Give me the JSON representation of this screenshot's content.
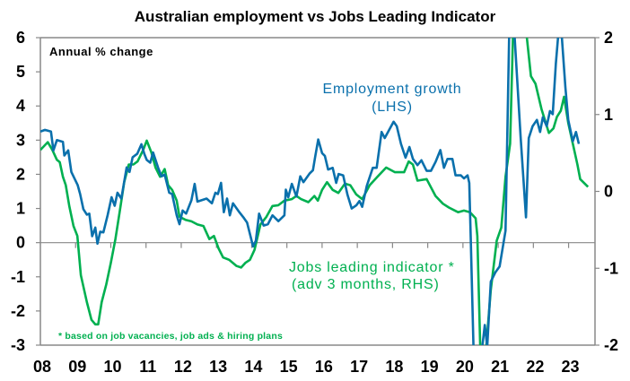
{
  "chart_data": {
    "type": "line",
    "title": "Australian employment vs Jobs Leading Indicator",
    "units_note": "Annual % change",
    "footnote": "* based on job vacancies, job ads & hiring plans",
    "x_tick_labels": [
      "08",
      "09",
      "10",
      "11",
      "12",
      "13",
      "14",
      "15",
      "16",
      "17",
      "18",
      "19",
      "20",
      "21",
      "22",
      "23"
    ],
    "x_ticks_years": [
      2008,
      2009,
      2010,
      2011,
      2012,
      2013,
      2014,
      2015,
      2016,
      2017,
      2018,
      2019,
      2020,
      2021,
      2022,
      2023
    ],
    "xlim": [
      2008,
      2023.75
    ],
    "ylim_left": [
      -3,
      6
    ],
    "ylim_right": [
      -2,
      2
    ],
    "y_left_ticks": [
      6,
      5,
      4,
      3,
      2,
      1,
      0,
      -1,
      -2,
      -3
    ],
    "y_right_ticks": [
      2,
      1,
      0,
      -1,
      -2
    ],
    "colors": {
      "employment": "#0A70AC",
      "jli": "#00B050",
      "axis": "#888888"
    },
    "series": [
      {
        "name": "Employment growth",
        "label_lines": [
          "Employment growth",
          "(LHS)"
        ],
        "axis": "left",
        "points": [
          [
            2008.0,
            3.25
          ],
          [
            2008.13,
            3.3
          ],
          [
            2008.3,
            3.25
          ],
          [
            2008.37,
            2.7
          ],
          [
            2008.47,
            3.0
          ],
          [
            2008.64,
            2.95
          ],
          [
            2008.68,
            2.55
          ],
          [
            2008.79,
            2.7
          ],
          [
            2008.88,
            2.07
          ],
          [
            2009.06,
            1.68
          ],
          [
            2009.13,
            1.42
          ],
          [
            2009.22,
            0.98
          ],
          [
            2009.32,
            0.82
          ],
          [
            2009.39,
            0.85
          ],
          [
            2009.47,
            0.19
          ],
          [
            2009.56,
            0.44
          ],
          [
            2009.62,
            -0.03
          ],
          [
            2009.7,
            0.32
          ],
          [
            2009.79,
            0.3
          ],
          [
            2009.91,
            0.8
          ],
          [
            2010.02,
            1.33
          ],
          [
            2010.11,
            1.08
          ],
          [
            2010.19,
            1.46
          ],
          [
            2010.3,
            1.29
          ],
          [
            2010.45,
            2.2
          ],
          [
            2010.53,
            2.07
          ],
          [
            2010.62,
            2.5
          ],
          [
            2010.75,
            2.6
          ],
          [
            2010.87,
            2.88
          ],
          [
            2010.95,
            2.6
          ],
          [
            2011.02,
            2.42
          ],
          [
            2011.12,
            2.34
          ],
          [
            2011.2,
            2.64
          ],
          [
            2011.34,
            2.2
          ],
          [
            2011.44,
            1.94
          ],
          [
            2011.53,
            1.99
          ],
          [
            2011.66,
            1.46
          ],
          [
            2011.74,
            1.42
          ],
          [
            2011.87,
            0.8
          ],
          [
            2011.95,
            0.54
          ],
          [
            2012.04,
            0.94
          ],
          [
            2012.14,
            0.85
          ],
          [
            2012.29,
            1.24
          ],
          [
            2012.38,
            1.72
          ],
          [
            2012.46,
            1.2
          ],
          [
            2012.72,
            1.29
          ],
          [
            2012.87,
            1.15
          ],
          [
            2012.97,
            1.46
          ],
          [
            2013.04,
            1.42
          ],
          [
            2013.13,
            1.75
          ],
          [
            2013.21,
            0.89
          ],
          [
            2013.3,
            1.29
          ],
          [
            2013.38,
            0.8
          ],
          [
            2013.47,
            1.15
          ],
          [
            2013.65,
            0.89
          ],
          [
            2013.78,
            0.72
          ],
          [
            2013.87,
            0.59
          ],
          [
            2014.04,
            -0.11
          ],
          [
            2014.12,
            0.06
          ],
          [
            2014.21,
            0.85
          ],
          [
            2014.34,
            0.5
          ],
          [
            2014.46,
            0.54
          ],
          [
            2014.59,
            0.8
          ],
          [
            2014.76,
            0.63
          ],
          [
            2014.93,
            0.8
          ],
          [
            2014.97,
            1.55
          ],
          [
            2015.04,
            1.33
          ],
          [
            2015.14,
            1.72
          ],
          [
            2015.27,
            1.35
          ],
          [
            2015.38,
            1.94
          ],
          [
            2015.47,
            1.77
          ],
          [
            2015.65,
            2.03
          ],
          [
            2015.74,
            2.12
          ],
          [
            2015.8,
            2.5
          ],
          [
            2015.89,
            3.02
          ],
          [
            2016.0,
            2.62
          ],
          [
            2016.08,
            2.54
          ],
          [
            2016.17,
            2.14
          ],
          [
            2016.3,
            2.19
          ],
          [
            2016.4,
            1.75
          ],
          [
            2016.47,
            2.01
          ],
          [
            2016.6,
            1.97
          ],
          [
            2016.72,
            1.4
          ],
          [
            2016.84,
            1.0
          ],
          [
            2016.97,
            1.09
          ],
          [
            2017.06,
            1.22
          ],
          [
            2017.14,
            1.05
          ],
          [
            2017.27,
            1.66
          ],
          [
            2017.44,
            2.19
          ],
          [
            2017.55,
            2.19
          ],
          [
            2017.69,
            3.24
          ],
          [
            2017.78,
            3.06
          ],
          [
            2018.03,
            3.54
          ],
          [
            2018.12,
            3.41
          ],
          [
            2018.24,
            2.89
          ],
          [
            2018.37,
            2.49
          ],
          [
            2018.48,
            2.8
          ],
          [
            2018.58,
            2.45
          ],
          [
            2018.71,
            2.27
          ],
          [
            2018.82,
            2.41
          ],
          [
            2018.97,
            2.1
          ],
          [
            2019.09,
            2.1
          ],
          [
            2019.22,
            2.36
          ],
          [
            2019.36,
            2.71
          ],
          [
            2019.46,
            2.19
          ],
          [
            2019.56,
            2.45
          ],
          [
            2019.7,
            2.45
          ],
          [
            2019.79,
            1.97
          ],
          [
            2019.94,
            1.97
          ],
          [
            2020.03,
            1.88
          ],
          [
            2020.13,
            1.97
          ],
          [
            2020.18,
            1.75
          ],
          [
            2020.22,
            0.17
          ],
          [
            2020.3,
            -4.5
          ],
          [
            2020.45,
            -4.8
          ],
          [
            2020.55,
            -3.5
          ],
          [
            2020.62,
            -2.41
          ],
          [
            2020.69,
            -3.3
          ],
          [
            2020.79,
            -1.14
          ],
          [
            2020.92,
            -0.87
          ],
          [
            2021.04,
            -0.7
          ],
          [
            2021.21,
            0.35
          ],
          [
            2021.31,
            6.0
          ],
          [
            2021.38,
            7.0
          ],
          [
            2021.47,
            6.0
          ],
          [
            2021.64,
            3.06
          ],
          [
            2021.79,
            0.74
          ],
          [
            2021.87,
            3.06
          ],
          [
            2021.98,
            3.41
          ],
          [
            2022.1,
            3.59
          ],
          [
            2022.19,
            3.24
          ],
          [
            2022.27,
            3.67
          ],
          [
            2022.38,
            3.41
          ],
          [
            2022.47,
            3.85
          ],
          [
            2022.55,
            3.76
          ],
          [
            2022.64,
            5.25
          ],
          [
            2022.7,
            6.0
          ],
          [
            2022.75,
            6.4
          ],
          [
            2022.81,
            6.0
          ],
          [
            2022.91,
            4.55
          ],
          [
            2022.99,
            3.59
          ],
          [
            2023.12,
            2.97
          ],
          [
            2023.21,
            3.24
          ],
          [
            2023.29,
            2.89
          ]
        ]
      },
      {
        "name": "Jobs leading indicator",
        "label_lines": [
          "Jobs leading indicator *",
          "(adv 3 months, RHS)"
        ],
        "axis": "right",
        "points": [
          [
            2008.0,
            0.54
          ],
          [
            2008.21,
            0.64
          ],
          [
            2008.34,
            0.54
          ],
          [
            2008.47,
            0.41
          ],
          [
            2008.55,
            0.38
          ],
          [
            2008.64,
            0.19
          ],
          [
            2008.72,
            0.08
          ],
          [
            2008.82,
            -0.19
          ],
          [
            2008.94,
            -0.45
          ],
          [
            2009.05,
            -0.58
          ],
          [
            2009.15,
            -1.09
          ],
          [
            2009.32,
            -1.44
          ],
          [
            2009.45,
            -1.67
          ],
          [
            2009.56,
            -1.73
          ],
          [
            2009.64,
            -1.73
          ],
          [
            2009.74,
            -1.44
          ],
          [
            2009.87,
            -1.21
          ],
          [
            2010.0,
            -0.93
          ],
          [
            2010.13,
            -0.62
          ],
          [
            2010.25,
            -0.27
          ],
          [
            2010.38,
            0.12
          ],
          [
            2010.51,
            0.35
          ],
          [
            2010.64,
            0.35
          ],
          [
            2010.76,
            0.39
          ],
          [
            2010.92,
            0.54
          ],
          [
            2011.02,
            0.66
          ],
          [
            2011.15,
            0.51
          ],
          [
            2011.27,
            0.31
          ],
          [
            2011.4,
            0.19
          ],
          [
            2011.53,
            0.29
          ],
          [
            2011.63,
            0.08
          ],
          [
            2011.74,
            0.02
          ],
          [
            2011.87,
            -0.12
          ],
          [
            2011.95,
            -0.33
          ],
          [
            2012.12,
            -0.37
          ],
          [
            2012.29,
            -0.39
          ],
          [
            2012.46,
            -0.43
          ],
          [
            2012.63,
            -0.45
          ],
          [
            2012.8,
            -0.62
          ],
          [
            2012.93,
            -0.58
          ],
          [
            2013.06,
            -0.74
          ],
          [
            2013.19,
            -0.86
          ],
          [
            2013.36,
            -0.89
          ],
          [
            2013.57,
            -0.97
          ],
          [
            2013.7,
            -0.99
          ],
          [
            2013.82,
            -0.93
          ],
          [
            2013.95,
            -0.89
          ],
          [
            2014.08,
            -0.76
          ],
          [
            2014.25,
            -0.43
          ],
          [
            2014.42,
            -0.33
          ],
          [
            2014.59,
            -0.19
          ],
          [
            2014.76,
            -0.18
          ],
          [
            2014.93,
            -0.12
          ],
          [
            2015.14,
            -0.1
          ],
          [
            2015.27,
            -0.06
          ],
          [
            2015.4,
            -0.1
          ],
          [
            2015.61,
            -0.14
          ],
          [
            2015.78,
            -0.06
          ],
          [
            2015.88,
            -0.12
          ],
          [
            2016.0,
            0.02
          ],
          [
            2016.14,
            0.12
          ],
          [
            2016.3,
            0.02
          ],
          [
            2016.46,
            -0.02
          ],
          [
            2016.65,
            0.1
          ],
          [
            2016.8,
            0.08
          ],
          [
            2016.97,
            -0.04
          ],
          [
            2017.14,
            -0.1
          ],
          [
            2017.35,
            0.08
          ],
          [
            2017.57,
            0.19
          ],
          [
            2017.82,
            0.31
          ],
          [
            2018.07,
            0.25
          ],
          [
            2018.33,
            0.25
          ],
          [
            2018.46,
            0.39
          ],
          [
            2018.58,
            0.35
          ],
          [
            2018.71,
            0.14
          ],
          [
            2018.97,
            0.16
          ],
          [
            2019.22,
            -0.06
          ],
          [
            2019.43,
            -0.16
          ],
          [
            2019.6,
            -0.21
          ],
          [
            2019.86,
            -0.27
          ],
          [
            2020.03,
            -0.25
          ],
          [
            2020.2,
            -0.27
          ],
          [
            2020.36,
            -0.35
          ],
          [
            2020.41,
            -0.58
          ],
          [
            2020.49,
            -2.02
          ],
          [
            2020.57,
            -2.4
          ],
          [
            2020.66,
            -2.02
          ],
          [
            2020.79,
            -1.28
          ],
          [
            2020.96,
            -0.64
          ],
          [
            2021.09,
            -0.47
          ],
          [
            2021.21,
            0.19
          ],
          [
            2021.34,
            0.62
          ],
          [
            2021.42,
            2.02
          ],
          [
            2021.55,
            2.4
          ],
          [
            2021.81,
            2.02
          ],
          [
            2021.93,
            1.5
          ],
          [
            2022.06,
            1.4
          ],
          [
            2022.23,
            1.07
          ],
          [
            2022.44,
            0.76
          ],
          [
            2022.57,
            0.82
          ],
          [
            2022.67,
            0.97
          ],
          [
            2022.78,
            1.05
          ],
          [
            2022.87,
            1.23
          ],
          [
            2022.99,
            0.89
          ],
          [
            2023.12,
            0.62
          ],
          [
            2023.25,
            0.35
          ],
          [
            2023.33,
            0.16
          ],
          [
            2023.55,
            0.06
          ]
        ]
      }
    ]
  }
}
